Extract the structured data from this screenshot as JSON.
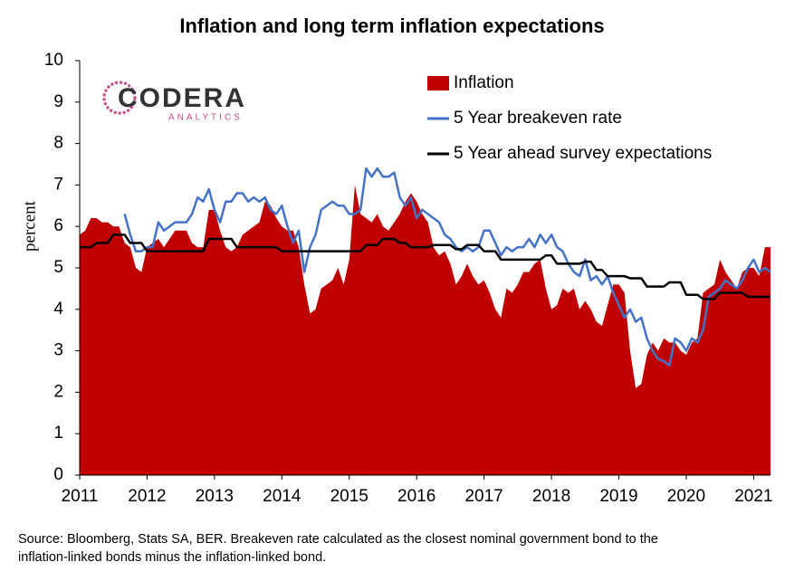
{
  "chart_data": {
    "type": "combo",
    "title": "Inflation and long term inflation expectations",
    "y_label": "percent",
    "logo": {
      "name": "CODERA",
      "tagline": "ANALYTICS"
    },
    "source": [
      "Source: Bloomberg, Stats SA, BER. Breakeven rate calculated as the closest nominal government bond to the",
      "inflation-linked bonds minus the inflation-linked bond."
    ],
    "xlim": [
      2011,
      2021.25
    ],
    "xticks": [
      2011,
      2012,
      2013,
      2014,
      2015,
      2016,
      2017,
      2018,
      2019,
      2020,
      2021
    ],
    "ylim": [
      0,
      10
    ],
    "yticks": [
      0,
      1,
      2,
      3,
      4,
      5,
      6,
      7,
      8,
      9,
      10
    ],
    "legend": "top-right",
    "x": [
      2011,
      2011.083,
      2011.167,
      2011.25,
      2011.333,
      2011.417,
      2011.5,
      2011.583,
      2011.667,
      2011.75,
      2011.833,
      2011.917,
      2012,
      2012.083,
      2012.167,
      2012.25,
      2012.333,
      2012.417,
      2012.5,
      2012.583,
      2012.667,
      2012.75,
      2012.833,
      2012.917,
      2013,
      2013.083,
      2013.167,
      2013.25,
      2013.333,
      2013.417,
      2013.5,
      2013.583,
      2013.667,
      2013.75,
      2013.833,
      2013.917,
      2014,
      2014.083,
      2014.167,
      2014.25,
      2014.333,
      2014.417,
      2014.5,
      2014.583,
      2014.667,
      2014.75,
      2014.833,
      2014.917,
      2015,
      2015.083,
      2015.167,
      2015.25,
      2015.333,
      2015.417,
      2015.5,
      2015.583,
      2015.667,
      2015.75,
      2015.833,
      2015.917,
      2016,
      2016.083,
      2016.167,
      2016.25,
      2016.333,
      2016.417,
      2016.5,
      2016.583,
      2016.667,
      2016.75,
      2016.833,
      2016.917,
      2017,
      2017.083,
      2017.167,
      2017.25,
      2017.333,
      2017.417,
      2017.5,
      2017.583,
      2017.667,
      2017.75,
      2017.833,
      2017.917,
      2018,
      2018.083,
      2018.167,
      2018.25,
      2018.333,
      2018.417,
      2018.5,
      2018.583,
      2018.667,
      2018.75,
      2018.833,
      2018.917,
      2019,
      2019.083,
      2019.167,
      2019.25,
      2019.333,
      2019.417,
      2019.5,
      2019.583,
      2019.667,
      2019.75,
      2019.833,
      2019.917,
      2020,
      2020.083,
      2020.167,
      2020.25,
      2020.333,
      2020.417,
      2020.5,
      2020.583,
      2020.667,
      2020.75,
      2020.833,
      2020.917,
      2021,
      2021.083,
      2021.167,
      2021.25
    ],
    "series": [
      {
        "name": "Inflation",
        "type": "area",
        "color": "#c00000",
        "values": [
          5.8,
          5.9,
          6.2,
          6.2,
          6.1,
          6.1,
          6.0,
          6.0,
          5.6,
          5.5,
          5.0,
          4.9,
          5.5,
          5.6,
          5.7,
          5.5,
          5.7,
          5.9,
          5.9,
          5.9,
          5.6,
          5.5,
          5.5,
          6.4,
          6.4,
          5.9,
          5.5,
          5.4,
          5.5,
          5.8,
          5.9,
          6.0,
          6.1,
          6.6,
          6.5,
          6.2,
          6.0,
          5.9,
          5.9,
          5.5,
          4.6,
          3.9,
          4.0,
          4.5,
          4.6,
          4.7,
          5.0,
          4.6,
          5.2,
          7.0,
          6.3,
          6.2,
          6.1,
          6.3,
          6.0,
          5.9,
          6.1,
          6.3,
          6.6,
          6.8,
          6.6,
          6.3,
          6.1,
          5.5,
          5.3,
          5.4,
          5.1,
          4.6,
          4.8,
          5.1,
          4.8,
          4.6,
          4.7,
          4.4,
          4.0,
          3.8,
          4.5,
          4.4,
          4.6,
          4.9,
          4.9,
          5.1,
          5.2,
          4.5,
          4.0,
          4.1,
          4.5,
          4.4,
          4.5,
          4.0,
          4.2,
          4.0,
          3.7,
          3.6,
          4.1,
          4.6,
          4.6,
          4.4,
          3.0,
          2.1,
          2.2,
          2.9,
          3.2,
          3.0,
          3.3,
          3.2,
          3.2,
          3.0,
          2.9,
          3.2,
          3.3,
          4.4,
          4.5,
          4.6,
          5.2,
          4.9,
          4.7,
          4.5,
          4.9,
          5.0,
          5.0,
          4.8,
          5.5,
          5.5
        ]
      },
      {
        "name": "5 Year breakeven rate",
        "type": "line",
        "color": "#4472c4",
        "values": [
          null,
          null,
          null,
          null,
          null,
          null,
          null,
          null,
          6.3,
          5.8,
          5.4,
          5.4,
          5.5,
          5.5,
          6.1,
          5.9,
          6.0,
          6.1,
          6.1,
          6.1,
          6.3,
          6.7,
          6.6,
          6.9,
          6.4,
          6.1,
          6.6,
          6.6,
          6.8,
          6.8,
          6.6,
          6.7,
          6.6,
          6.7,
          6.4,
          6.3,
          6.5,
          6.0,
          5.6,
          5.9,
          4.9,
          5.5,
          5.8,
          6.4,
          6.5,
          6.6,
          6.5,
          6.5,
          6.3,
          6.3,
          6.4,
          7.4,
          7.2,
          7.4,
          7.2,
          7.2,
          7.3,
          6.7,
          6.5,
          6.7,
          6.2,
          6.4,
          6.3,
          6.2,
          6.1,
          5.8,
          5.7,
          5.5,
          5.4,
          5.5,
          5.4,
          5.5,
          5.9,
          5.9,
          5.6,
          5.3,
          5.5,
          5.4,
          5.5,
          5.5,
          5.7,
          5.5,
          5.8,
          5.6,
          5.8,
          5.5,
          5.4,
          5.1,
          4.9,
          4.8,
          5.2,
          4.7,
          4.8,
          4.6,
          4.8,
          4.4,
          4.1,
          3.8,
          4.0,
          3.7,
          3.8,
          3.3,
          3.0,
          2.8,
          2.75,
          2.65,
          3.3,
          3.2,
          3.0,
          3.3,
          3.2,
          3.5,
          4.3,
          4.4,
          4.5,
          4.7,
          4.6,
          4.5,
          4.7,
          5.0,
          5.2,
          4.9,
          5.0,
          4.9
        ]
      },
      {
        "name": "5 Year ahead survey expectations",
        "type": "line",
        "color": "#000000",
        "values": [
          5.5,
          5.5,
          5.5,
          5.6,
          5.6,
          5.6,
          5.8,
          5.8,
          5.8,
          5.6,
          5.6,
          5.6,
          5.4,
          5.4,
          5.4,
          5.4,
          5.4,
          5.4,
          5.4,
          5.4,
          5.4,
          5.4,
          5.4,
          5.7,
          5.7,
          5.7,
          5.7,
          5.7,
          5.5,
          5.5,
          5.5,
          5.5,
          5.5,
          5.5,
          5.5,
          5.5,
          5.4,
          5.4,
          5.4,
          5.4,
          5.4,
          5.4,
          5.4,
          5.4,
          5.4,
          5.4,
          5.4,
          5.4,
          5.4,
          5.4,
          5.4,
          5.55,
          5.55,
          5.55,
          5.7,
          5.7,
          5.7,
          5.6,
          5.6,
          5.5,
          5.5,
          5.5,
          5.5,
          5.55,
          5.55,
          5.55,
          5.55,
          5.45,
          5.45,
          5.55,
          5.55,
          5.55,
          5.4,
          5.4,
          5.4,
          5.2,
          5.2,
          5.2,
          5.2,
          5.2,
          5.2,
          5.2,
          5.2,
          5.3,
          5.3,
          5.1,
          5.1,
          5.1,
          5.1,
          5.1,
          5.15,
          5.15,
          4.95,
          4.95,
          4.8,
          4.8,
          4.8,
          4.8,
          4.75,
          4.75,
          4.75,
          4.55,
          4.55,
          4.55,
          4.55,
          4.65,
          4.65,
          4.65,
          4.35,
          4.35,
          4.35,
          4.25,
          4.25,
          4.25,
          4.4,
          4.4,
          4.4,
          4.4,
          4.4,
          4.3,
          4.3,
          4.3,
          4.3,
          4.3
        ]
      }
    ]
  }
}
